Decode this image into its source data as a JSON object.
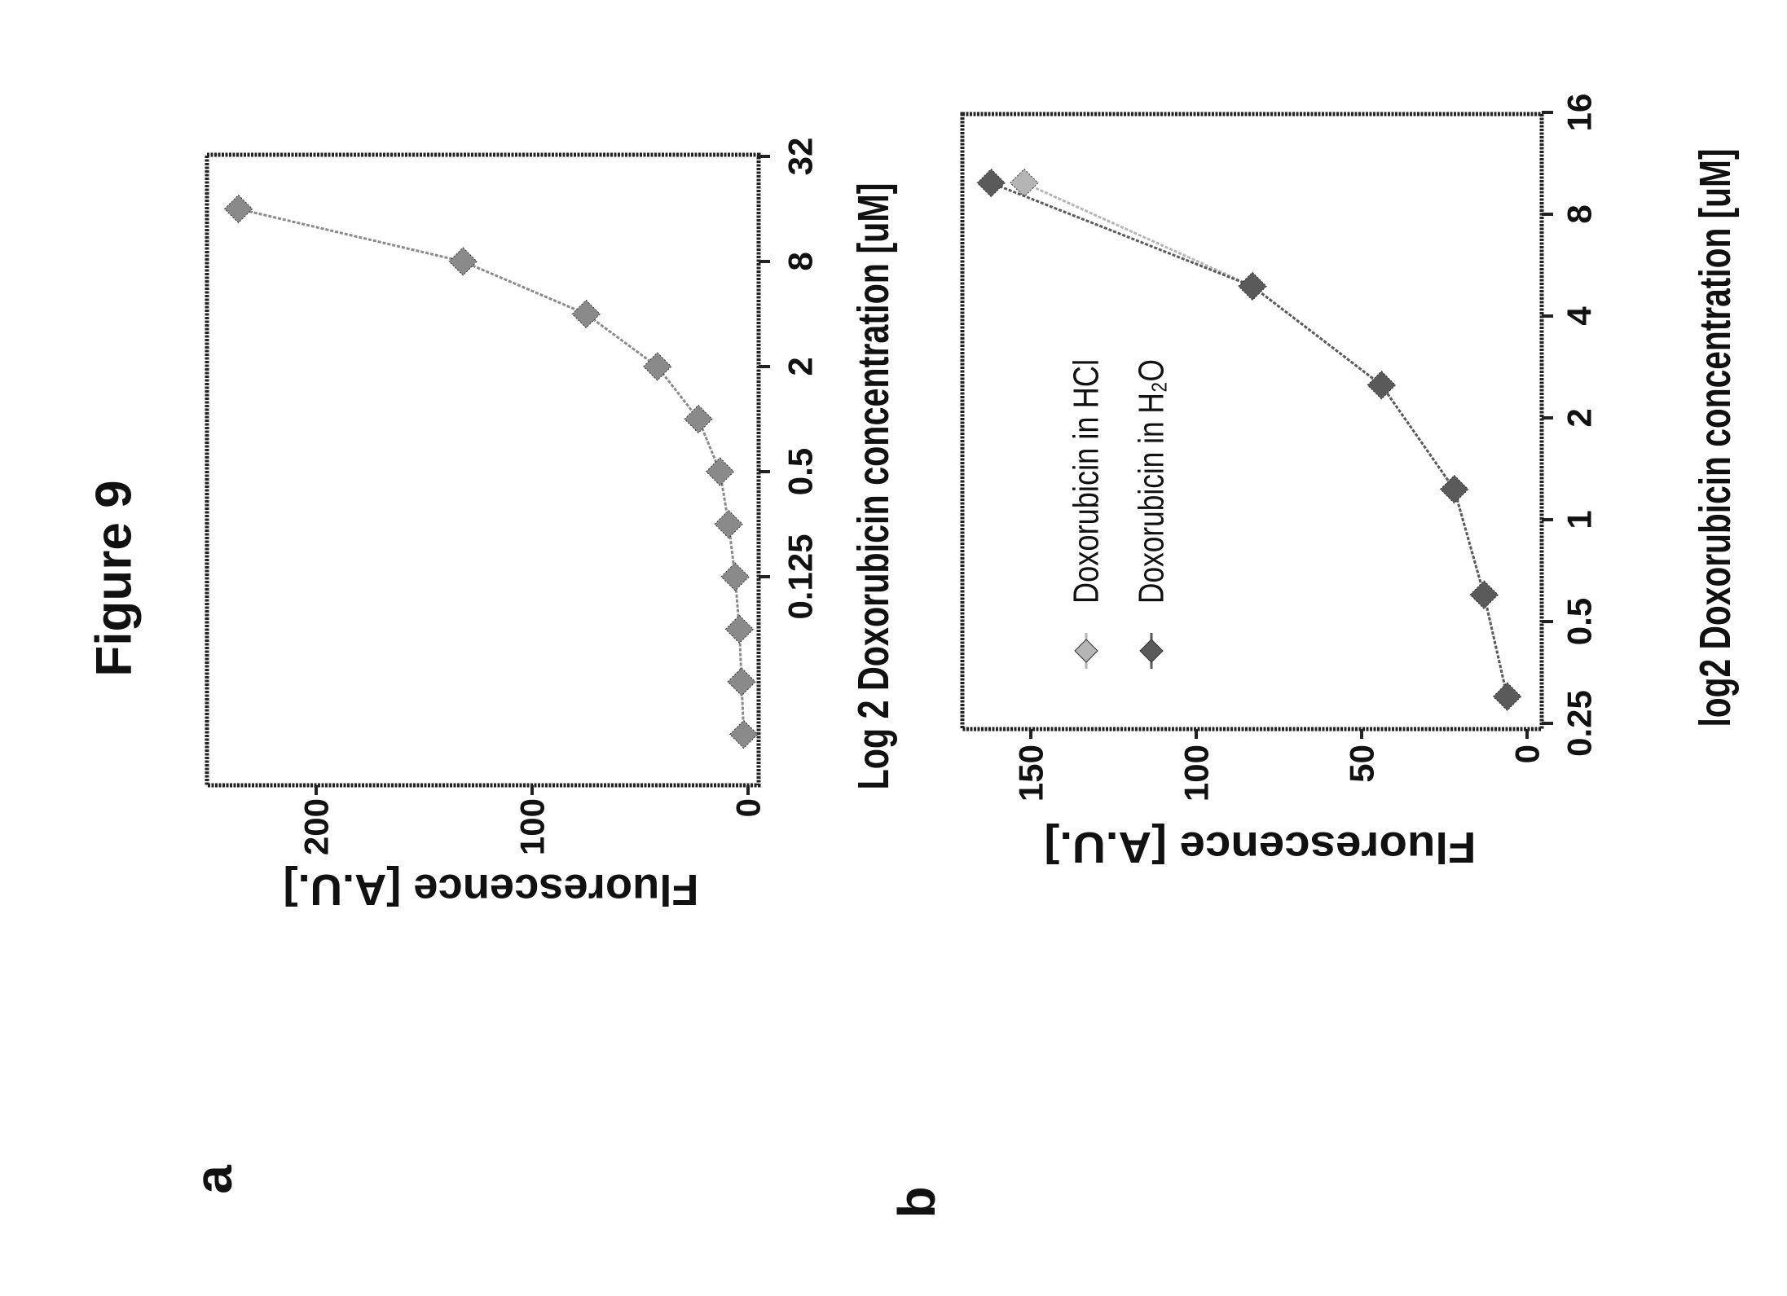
{
  "figure_title": "Figure 9",
  "panels": [
    {
      "label": "a"
    },
    {
      "label": "b"
    }
  ],
  "chart_data": [
    {
      "type": "line",
      "panel": "a",
      "xlabel": "Log 2 Doxorubicin concentration [uM]",
      "ylabel": "Fluorescence [A.U.]",
      "xscale": "log2",
      "xlim": [
        0.0078125,
        32
      ],
      "ylim": [
        0,
        250
      ],
      "xticks": [
        0.125,
        0.5,
        2,
        8,
        32
      ],
      "xtick_labels": [
        "0.125",
        "0.5",
        "2",
        "8",
        "32"
      ],
      "yticks": [
        0,
        100,
        200
      ],
      "ytick_labels": [
        "0",
        "100",
        "200"
      ],
      "series": [
        {
          "name": "Doxorubicin",
          "color": "#8a8a8a",
          "x": [
            0.015625,
            0.03125,
            0.0625,
            0.125,
            0.25,
            0.5,
            1,
            2,
            4,
            8,
            16
          ],
          "y": [
            2,
            3,
            4,
            6,
            9,
            13,
            23,
            42,
            75,
            132,
            236
          ]
        }
      ]
    },
    {
      "type": "line",
      "panel": "b",
      "xlabel": "log2 Doxorubicin concentration [uM]",
      "ylabel": "Fluorescence [A.U.]",
      "xscale": "log2",
      "xlim": [
        0.25,
        16
      ],
      "ylim": [
        0,
        170
      ],
      "xticks": [
        0.25,
        0.5,
        1,
        2,
        4,
        8,
        16
      ],
      "xtick_labels": [
        "0.25",
        "0.5",
        "1",
        "2",
        "4",
        "8",
        "16"
      ],
      "yticks": [
        0,
        50,
        100,
        150
      ],
      "ytick_labels": [
        "0",
        "50",
        "100",
        "150"
      ],
      "legend_position": "top-left",
      "series": [
        {
          "name": "Doxorubicin in HCl",
          "color": "#b5b5b5",
          "x": [
            0.3,
            0.6,
            1.23,
            2.5,
            4.9,
            9.9
          ],
          "y": [
            6,
            13,
            22,
            44,
            83,
            152
          ]
        },
        {
          "name": "Doxorubicin in H₂O",
          "color": "#5a5a5a",
          "x": [
            0.3,
            0.6,
            1.23,
            2.5,
            4.9,
            9.9
          ],
          "y": [
            6,
            13,
            22,
            44,
            83,
            162
          ]
        }
      ]
    }
  ]
}
